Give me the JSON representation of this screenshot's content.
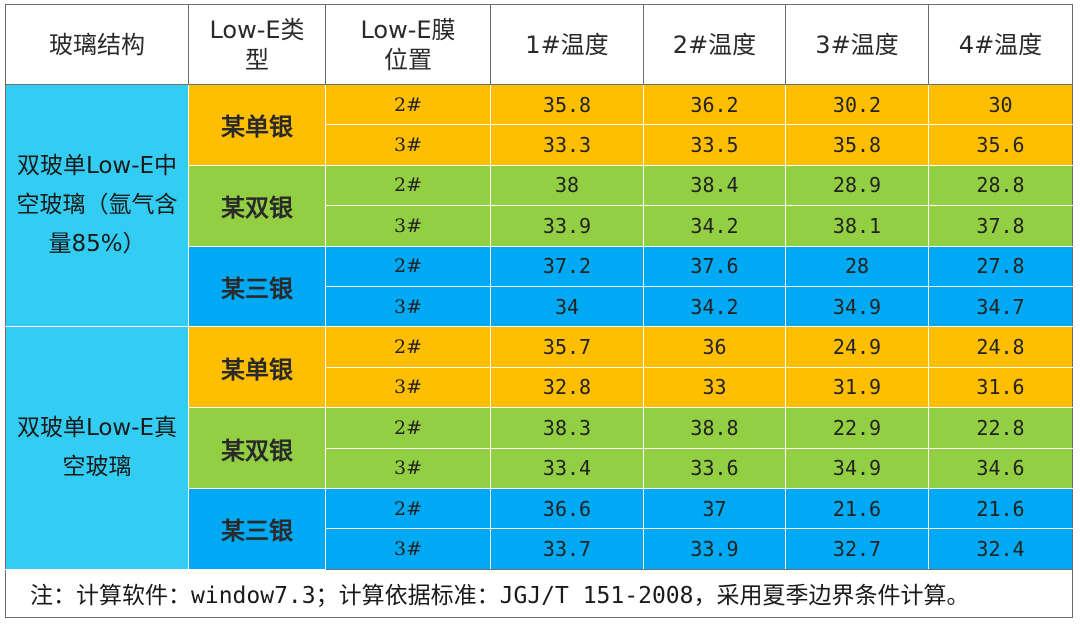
{
  "header": {
    "structure": "玻璃结构",
    "lowe_type": "Low-E类型",
    "lowe_position": "Low-E膜位置",
    "temp1": "1#温度",
    "temp2": "2#温度",
    "temp3": "3#温度",
    "temp4": "4#温度"
  },
  "colors": {
    "orange": "#ffbf00",
    "green": "#92cf42",
    "blue": "#00a9f4",
    "structure_cyan": "#33ccf2"
  },
  "groups": [
    {
      "structure": "双玻单Low-E中空玻璃（氩气含量85%）",
      "types": [
        {
          "name": "某单银",
          "color": "orange",
          "rows": [
            {
              "pos": "2#",
              "t1": "35.8",
              "t2": "36.2",
              "t3": "30.2",
              "t4": "30"
            },
            {
              "pos": "3#",
              "t1": "33.3",
              "t2": "33.5",
              "t3": "35.8",
              "t4": "35.6"
            }
          ]
        },
        {
          "name": "某双银",
          "color": "green",
          "rows": [
            {
              "pos": "2#",
              "t1": "38",
              "t2": "38.4",
              "t3": "28.9",
              "t4": "28.8"
            },
            {
              "pos": "3#",
              "t1": "33.9",
              "t2": "34.2",
              "t3": "38.1",
              "t4": "37.8"
            }
          ]
        },
        {
          "name": "某三银",
          "color": "blue",
          "rows": [
            {
              "pos": "2#",
              "t1": "37.2",
              "t2": "37.6",
              "t3": "28",
              "t4": "27.8"
            },
            {
              "pos": "3#",
              "t1": "34",
              "t2": "34.2",
              "t3": "34.9",
              "t4": "34.7"
            }
          ]
        }
      ]
    },
    {
      "structure": "双玻单Low-E真空玻璃",
      "types": [
        {
          "name": "某单银",
          "color": "orange",
          "rows": [
            {
              "pos": "2#",
              "t1": "35.7",
              "t2": "36",
              "t3": "24.9",
              "t4": "24.8"
            },
            {
              "pos": "3#",
              "t1": "32.8",
              "t2": "33",
              "t3": "31.9",
              "t4": "31.6"
            }
          ]
        },
        {
          "name": "某双银",
          "color": "green",
          "rows": [
            {
              "pos": "2#",
              "t1": "38.3",
              "t2": "38.8",
              "t3": "22.9",
              "t4": "22.8"
            },
            {
              "pos": "3#",
              "t1": "33.4",
              "t2": "33.6",
              "t3": "34.9",
              "t4": "34.6"
            }
          ]
        },
        {
          "name": "某三银",
          "color": "blue",
          "rows": [
            {
              "pos": "2#",
              "t1": "36.6",
              "t2": "37",
              "t3": "21.6",
              "t4": "21.6"
            },
            {
              "pos": "3#",
              "t1": "33.7",
              "t2": "33.9",
              "t3": "32.7",
              "t4": "32.4"
            }
          ]
        }
      ]
    }
  ],
  "note": "注：计算软件：window7.3；计算依据标准：JGJ/T 151-2008，采用夏季边界条件计算。"
}
